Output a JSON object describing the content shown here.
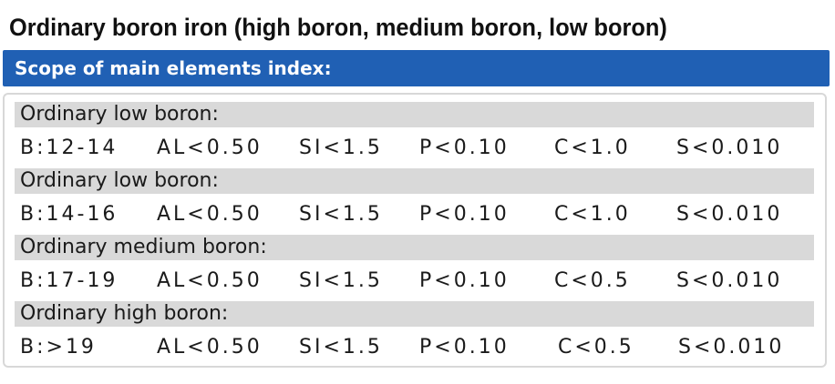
{
  "title": "Ordinary boron iron (high boron, medium boron, low boron)",
  "header": "Scope of main elements index:",
  "groups": [
    {
      "label": "Ordinary low boron:",
      "b": "B:12-14",
      "al": "AL<0.50",
      "si": "SI<1.5",
      "p": "P<0.10",
      "c": "C<1.0",
      "s": "S<0.010"
    },
    {
      "label": "Ordinary low boron:",
      "b": "B:14-16",
      "al": "AL<0.50",
      "si": "SI<1.5",
      "p": "P<0.10",
      "c": "C<1.0",
      "s": "S<0.010"
    },
    {
      "label": "Ordinary medium boron:",
      "b": "B:17-19",
      "al": "AL<0.50",
      "si": "SI<1.5",
      "p": "P<0.10",
      "c": "C<0.5",
      "s": "S<0.010"
    },
    {
      "label": "Ordinary high boron:",
      "b": "B:>19",
      "al": "AL<0.50",
      "si": "SI<1.5",
      "p": "P<0.10",
      "c": "C<0.5",
      "s": "S<0.010"
    }
  ],
  "colors": {
    "header_bar": "#2060b4",
    "label_band": "#d9d9d9",
    "card_border": "#d8d8d8"
  }
}
